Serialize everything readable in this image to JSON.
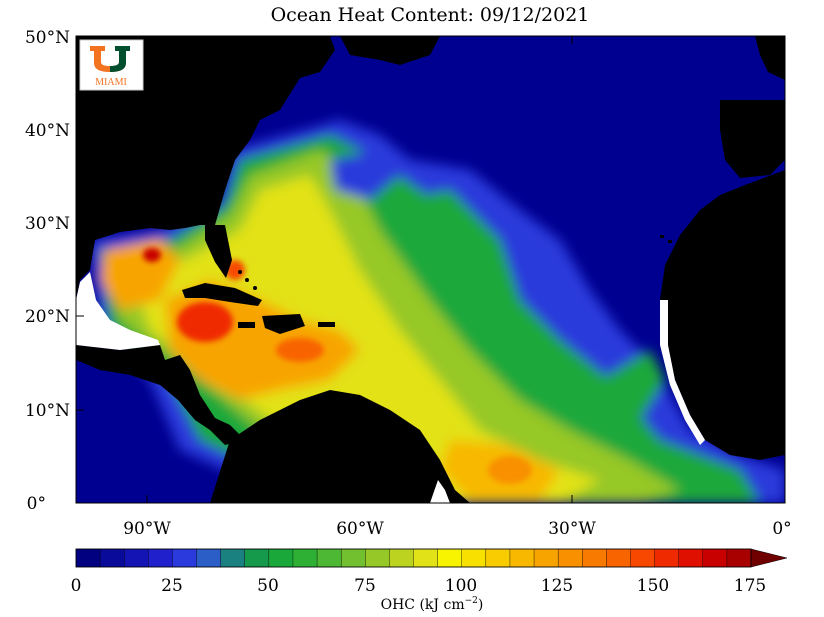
{
  "title": "Ocean Heat Content: 09/12/2021",
  "logo": {
    "letter": "U",
    "text": "MIAMI",
    "orange": "#f47321",
    "green": "#005030"
  },
  "axes": {
    "lon_labels": [
      "90°W",
      "60°W",
      "30°W",
      "0°"
    ],
    "lat_labels": [
      "50°N",
      "40°N",
      "30°N",
      "20°N",
      "10°N",
      "0°"
    ]
  },
  "colorbar": {
    "labels": [
      "0",
      "25",
      "50",
      "75",
      "100",
      "125",
      "150",
      "175"
    ],
    "unit_label": "OHC (kJ cm",
    "unit_exp": "−2",
    "unit_close": ")",
    "colors": [
      "#000080",
      "#0a0a9a",
      "#1414b4",
      "#2020cc",
      "#2a3adc",
      "#2c5ec8",
      "#1b8080",
      "#149a4a",
      "#1aa83a",
      "#2eb034",
      "#4cb834",
      "#72c030",
      "#96c828",
      "#bcd420",
      "#e2e218",
      "#f8f400",
      "#f8e000",
      "#f8cc00",
      "#f8b800",
      "#f8a400",
      "#f89000",
      "#f87a00",
      "#f86400",
      "#f84800",
      "#f02a00",
      "#e01000",
      "#c80000",
      "#a80000"
    ],
    "arrow_color": "#700000"
  },
  "colors": {
    "land": "#000000",
    "deep_ocean": "#000090"
  }
}
